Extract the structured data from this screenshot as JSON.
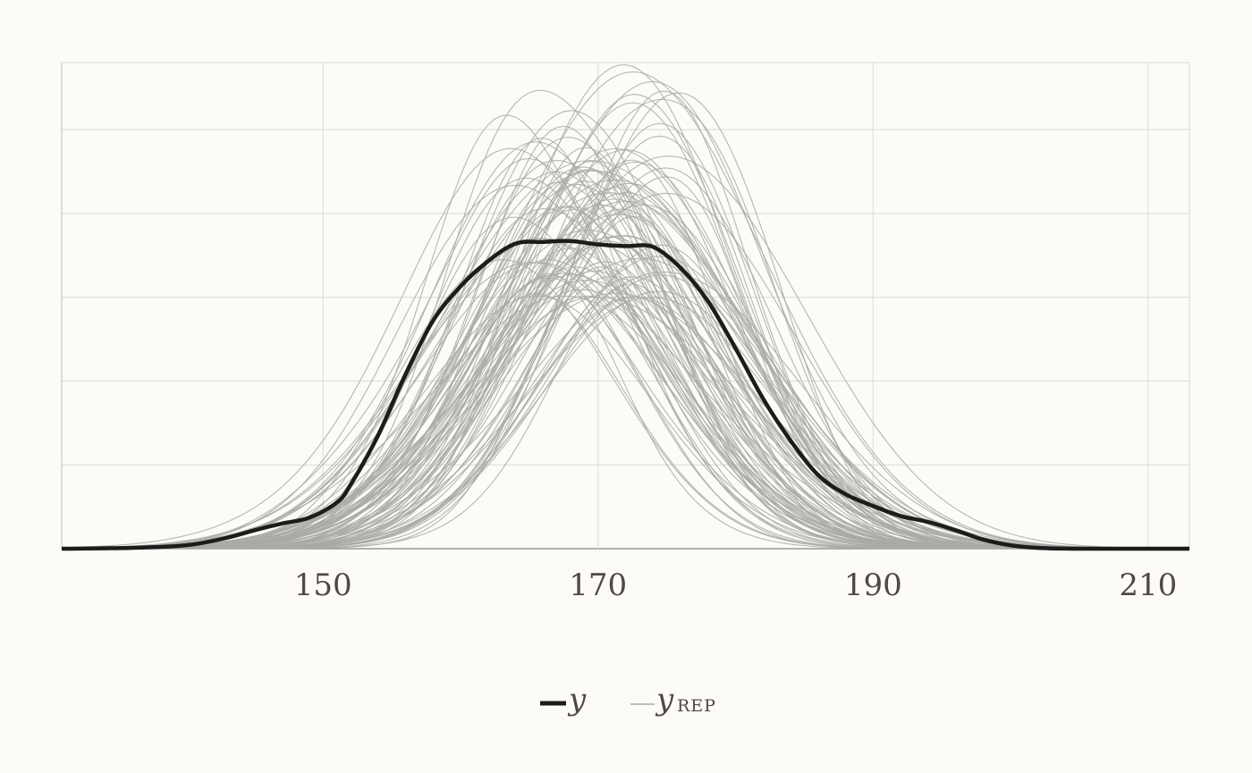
{
  "chart_data": {
    "type": "line",
    "title": "",
    "xlabel": "",
    "ylabel": "",
    "xlim": [
      131,
      213
    ],
    "ylim": [
      0,
      0.058
    ],
    "x_ticks": [
      150,
      170,
      190,
      210
    ],
    "x_tick_labels": [
      "150",
      "170",
      "190",
      "210"
    ],
    "y_gridlines": [
      0,
      0.01,
      0.02,
      0.03,
      0.04,
      0.05
    ],
    "y_tick_labels_shown": false,
    "grid": true,
    "legend": {
      "position": "bottom-center",
      "entries": [
        {
          "label": "y",
          "subscript": "",
          "style": "thick-dark"
        },
        {
          "label": "y",
          "subscript": "REP",
          "style": "thin-gray"
        }
      ]
    },
    "observed": {
      "name": "y",
      "color": "#1e1c1b",
      "x": [
        131,
        136,
        140,
        143,
        145,
        147,
        149,
        151,
        152,
        154,
        156,
        158,
        160,
        162,
        164,
        166,
        168,
        170,
        172,
        174,
        176,
        178,
        180,
        182,
        184,
        186,
        188,
        190,
        192,
        194,
        196,
        198,
        200,
        202,
        205,
        213
      ],
      "y": [
        0.0,
        0.0001,
        0.0004,
        0.0013,
        0.0022,
        0.003,
        0.0037,
        0.0055,
        0.0076,
        0.0135,
        0.0208,
        0.0272,
        0.0313,
        0.0343,
        0.0364,
        0.0366,
        0.0367,
        0.0363,
        0.0361,
        0.036,
        0.0335,
        0.0295,
        0.0239,
        0.0179,
        0.0129,
        0.0088,
        0.0065,
        0.0051,
        0.0039,
        0.0032,
        0.0022,
        0.0011,
        0.0004,
        0.0001,
        0.0,
        0.0
      ]
    },
    "replicates": {
      "name": "y_rep",
      "color": "#a9a9a7",
      "count": 100,
      "x_min": 131,
      "x_max": 213,
      "peak_center_range": [
        165,
        174
      ],
      "peak_height_range": [
        0.03,
        0.058
      ],
      "spread_sd_range": [
        6.8,
        10.5
      ],
      "seed": 7
    }
  }
}
